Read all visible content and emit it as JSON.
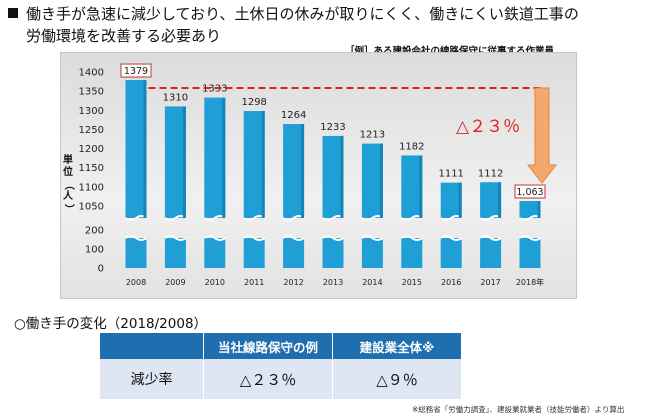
{
  "heading": {
    "line1": "働き手が急速に減少しており、土休日の休みが取りにくく、働きにくい鉄道工事の",
    "line2": "労働環境を改善する必要あり"
  },
  "chart_sublabel": "［例］ある建設会社の線路保守に従事する作業員",
  "chart_data": {
    "type": "bar",
    "categories": [
      "2008",
      "2009",
      "2010",
      "2011",
      "2012",
      "2013",
      "2014",
      "2015",
      "2016",
      "2017",
      "2018年"
    ],
    "values": [
      1379,
      1310,
      1333,
      1298,
      1264,
      1233,
      1213,
      1182,
      1111,
      1112,
      1063
    ],
    "data_labels": [
      "1379",
      "1310",
      "1333",
      "1298",
      "1264",
      "1233",
      "1213",
      "1182",
      "1111",
      "1112",
      "1,063"
    ],
    "ylabel": "単位（人）",
    "yticks": [
      "1400",
      "1350",
      "1300",
      "1250",
      "1200",
      "1150",
      "1100",
      "1050",
      "200",
      "100",
      "0"
    ],
    "axis_break": true,
    "annotation": "△２３％",
    "grid": false,
    "colors": {
      "bar": "#1f9fd6",
      "bar_dark": "#1385b8",
      "reference_line": "#e02020",
      "arrow": "#f5a86b",
      "arrow_stroke": "#e8823e"
    }
  },
  "change_title": "○働き手の変化（2018/2008）",
  "table": {
    "headers": [
      "当社線路保守の例",
      "建設業全体※"
    ],
    "row_label": "減少率",
    "values": [
      "△２３％",
      "△９％"
    ]
  },
  "footnote": "※総務省「労働力調査」、建設業就業者（技能労働者）より算出"
}
